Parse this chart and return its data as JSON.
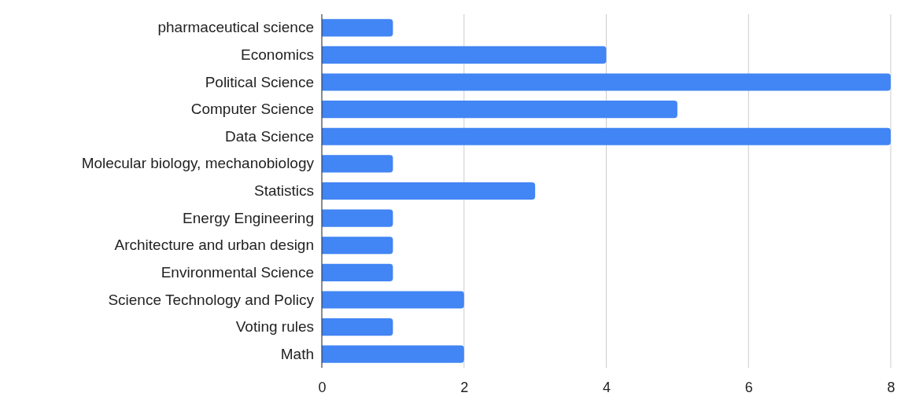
{
  "chart_data": {
    "type": "bar",
    "orientation": "horizontal",
    "categories": [
      "pharmaceutical science",
      "Economics",
      "Political Science",
      "Computer Science",
      "Data Science",
      "Molecular biology, mechanobiology",
      "Statistics",
      "Energy Engineering",
      "Architecture and urban design",
      "Environmental Science",
      "Science Technology and Policy",
      "Voting rules",
      "Math"
    ],
    "values": [
      1,
      4,
      8,
      5,
      8,
      1,
      3,
      1,
      1,
      1,
      2,
      1,
      2
    ],
    "color": "#4285f4",
    "xlim": [
      0,
      8
    ],
    "xticks": [
      0,
      2,
      4,
      6,
      8
    ],
    "grid": "x"
  }
}
